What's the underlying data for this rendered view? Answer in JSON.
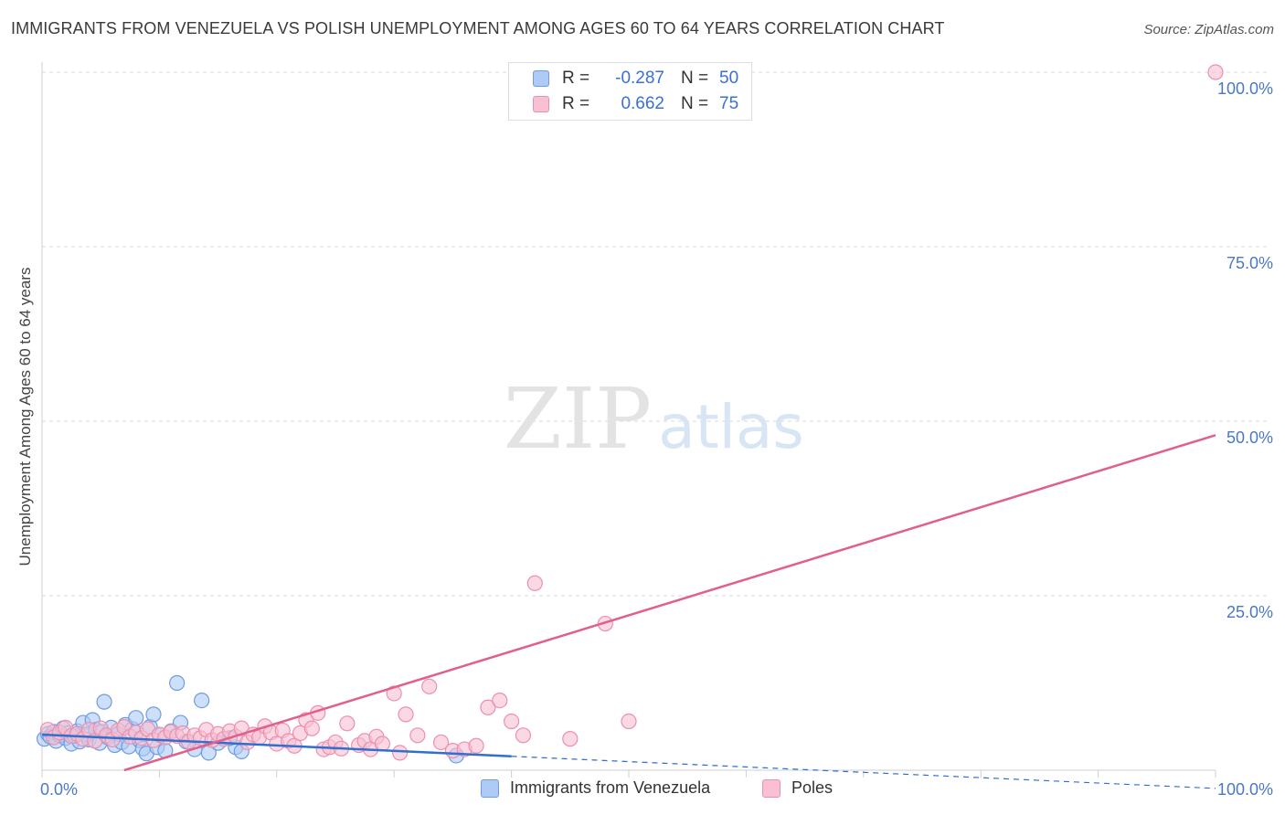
{
  "header": {
    "title": "IMMIGRANTS FROM VENEZUELA VS POLISH UNEMPLOYMENT AMONG AGES 60 TO 64 YEARS CORRELATION CHART",
    "source": "Source: ZipAtlas.com"
  },
  "watermark": {
    "zip": "ZIP",
    "atlas": "atlas"
  },
  "colors": {
    "blue_fill": "#aecbf5",
    "blue_stroke": "#6f9be0",
    "blue_line": "#2f6fd0",
    "pink_fill": "#f8c0d2",
    "pink_stroke": "#ec8fae",
    "pink_line": "#e0608a",
    "tick_text": "#4a78c8",
    "grid": "#d8d8d8"
  },
  "legend": {
    "rows": [
      {
        "r_label": "R =",
        "r_value": "-0.287",
        "n_label": "N =",
        "n_value": "50"
      },
      {
        "r_label": "R =",
        "r_value": "0.662",
        "n_label": "N =",
        "n_value": "75"
      }
    ]
  },
  "bottom_legend": {
    "series_a": "Immigrants from Venezuela",
    "series_b": "Poles"
  },
  "chart_data": {
    "type": "scatter",
    "title": "IMMIGRANTS FROM VENEZUELA VS POLISH UNEMPLOYMENT AMONG AGES 60 TO 64 YEARS CORRELATION CHART",
    "xlabel": "",
    "ylabel": "Unemployment Among Ages 60 to 64 years",
    "xlim": [
      0,
      100
    ],
    "ylim": [
      0,
      100
    ],
    "x_tick_labels": [
      "0.0%",
      "100.0%"
    ],
    "y_ticks": [
      25,
      50,
      75,
      100
    ],
    "y_tick_labels": [
      "25.0%",
      "50.0%",
      "75.0%",
      "100.0%"
    ],
    "grid": true,
    "series": [
      {
        "name": "Immigrants from Venezuela",
        "r": -0.287,
        "n": 50,
        "points": [
          [
            0.2,
            4.5
          ],
          [
            0.5,
            5.2
          ],
          [
            0.7,
            4.8
          ],
          [
            1.0,
            5.5
          ],
          [
            1.2,
            4.2
          ],
          [
            1.5,
            5.0
          ],
          [
            1.8,
            6.0
          ],
          [
            2.0,
            4.6
          ],
          [
            2.2,
            5.3
          ],
          [
            2.5,
            3.8
          ],
          [
            2.8,
            4.9
          ],
          [
            3.0,
            5.6
          ],
          [
            3.2,
            4.1
          ],
          [
            3.5,
            6.8
          ],
          [
            3.8,
            5.1
          ],
          [
            4.0,
            4.4
          ],
          [
            4.3,
            7.2
          ],
          [
            4.6,
            5.8
          ],
          [
            4.9,
            3.9
          ],
          [
            5.1,
            5.5
          ],
          [
            5.3,
            9.8
          ],
          [
            5.6,
            4.7
          ],
          [
            5.9,
            6.1
          ],
          [
            6.2,
            3.6
          ],
          [
            6.5,
            5.2
          ],
          [
            6.8,
            4.0
          ],
          [
            7.1,
            6.5
          ],
          [
            7.4,
            3.4
          ],
          [
            7.7,
            5.9
          ],
          [
            8.0,
            7.5
          ],
          [
            8.3,
            4.3
          ],
          [
            8.6,
            3.1
          ],
          [
            8.9,
            2.4
          ],
          [
            9.2,
            6.2
          ],
          [
            9.5,
            8.0
          ],
          [
            9.8,
            3.3
          ],
          [
            10.1,
            5.0
          ],
          [
            10.5,
            2.8
          ],
          [
            11.0,
            5.6
          ],
          [
            11.5,
            12.5
          ],
          [
            11.8,
            6.8
          ],
          [
            12.3,
            4.1
          ],
          [
            13.0,
            3.0
          ],
          [
            13.6,
            10.0
          ],
          [
            14.2,
            2.5
          ],
          [
            15.0,
            3.9
          ],
          [
            16.5,
            3.3
          ],
          [
            17.0,
            2.7
          ],
          [
            16.0,
            4.6
          ],
          [
            35.3,
            2.1
          ]
        ]
      },
      {
        "name": "Poles",
        "r": 0.662,
        "n": 75,
        "points": [
          [
            0.5,
            5.8
          ],
          [
            1.0,
            4.7
          ],
          [
            1.5,
            5.4
          ],
          [
            2.0,
            6.1
          ],
          [
            2.5,
            4.9
          ],
          [
            3.0,
            5.2
          ],
          [
            3.5,
            4.5
          ],
          [
            4.0,
            5.8
          ],
          [
            4.5,
            4.2
          ],
          [
            5.0,
            6.0
          ],
          [
            5.5,
            5.0
          ],
          [
            6.0,
            4.4
          ],
          [
            6.5,
            5.7
          ],
          [
            7.0,
            6.2
          ],
          [
            7.5,
            4.8
          ],
          [
            8.0,
            5.4
          ],
          [
            8.5,
            4.6
          ],
          [
            9.0,
            5.9
          ],
          [
            9.5,
            4.3
          ],
          [
            10.0,
            5.1
          ],
          [
            10.5,
            4.7
          ],
          [
            11.0,
            5.5
          ],
          [
            11.5,
            4.9
          ],
          [
            12.0,
            5.3
          ],
          [
            12.5,
            4.1
          ],
          [
            13.0,
            5.0
          ],
          [
            13.5,
            4.6
          ],
          [
            14.0,
            5.8
          ],
          [
            14.5,
            4.3
          ],
          [
            15.0,
            5.2
          ],
          [
            15.5,
            4.5
          ],
          [
            16.0,
            5.6
          ],
          [
            16.5,
            4.8
          ],
          [
            17.0,
            6.0
          ],
          [
            17.5,
            4.0
          ],
          [
            18.0,
            5.1
          ],
          [
            18.5,
            4.7
          ],
          [
            19.0,
            6.3
          ],
          [
            19.5,
            5.4
          ],
          [
            20.0,
            3.8
          ],
          [
            20.5,
            5.7
          ],
          [
            21.0,
            4.2
          ],
          [
            21.5,
            3.5
          ],
          [
            22.0,
            5.3
          ],
          [
            22.5,
            7.2
          ],
          [
            23.0,
            6.0
          ],
          [
            23.5,
            8.2
          ],
          [
            24.0,
            3.0
          ],
          [
            24.5,
            3.3
          ],
          [
            25.0,
            4.0
          ],
          [
            25.5,
            3.1
          ],
          [
            26.0,
            6.7
          ],
          [
            27.0,
            3.6
          ],
          [
            27.5,
            4.2
          ],
          [
            28.0,
            3.0
          ],
          [
            28.5,
            4.8
          ],
          [
            29.0,
            3.8
          ],
          [
            30.0,
            11.0
          ],
          [
            30.5,
            2.5
          ],
          [
            31.0,
            8.0
          ],
          [
            32.0,
            5.0
          ],
          [
            33.0,
            12.0
          ],
          [
            34.0,
            4.0
          ],
          [
            35.0,
            2.8
          ],
          [
            36.0,
            3.0
          ],
          [
            37.0,
            3.5
          ],
          [
            38.0,
            9.0
          ],
          [
            39.0,
            10.0
          ],
          [
            40.0,
            7.0
          ],
          [
            41.0,
            5.0
          ],
          [
            42.0,
            26.8
          ],
          [
            45.0,
            4.5
          ],
          [
            48.0,
            21.0
          ],
          [
            50.0,
            7.0
          ],
          [
            100.0,
            100.0
          ]
        ]
      }
    ],
    "trend_lines": [
      {
        "series": "Immigrants from Venezuela",
        "x": [
          0,
          40
        ],
        "y": [
          5.1,
          2.0
        ],
        "dashed_x": [
          40,
          100
        ],
        "dashed_y": [
          2.0,
          -2.6
        ]
      },
      {
        "series": "Poles",
        "x": [
          7,
          100
        ],
        "y": [
          0,
          48
        ]
      }
    ]
  }
}
